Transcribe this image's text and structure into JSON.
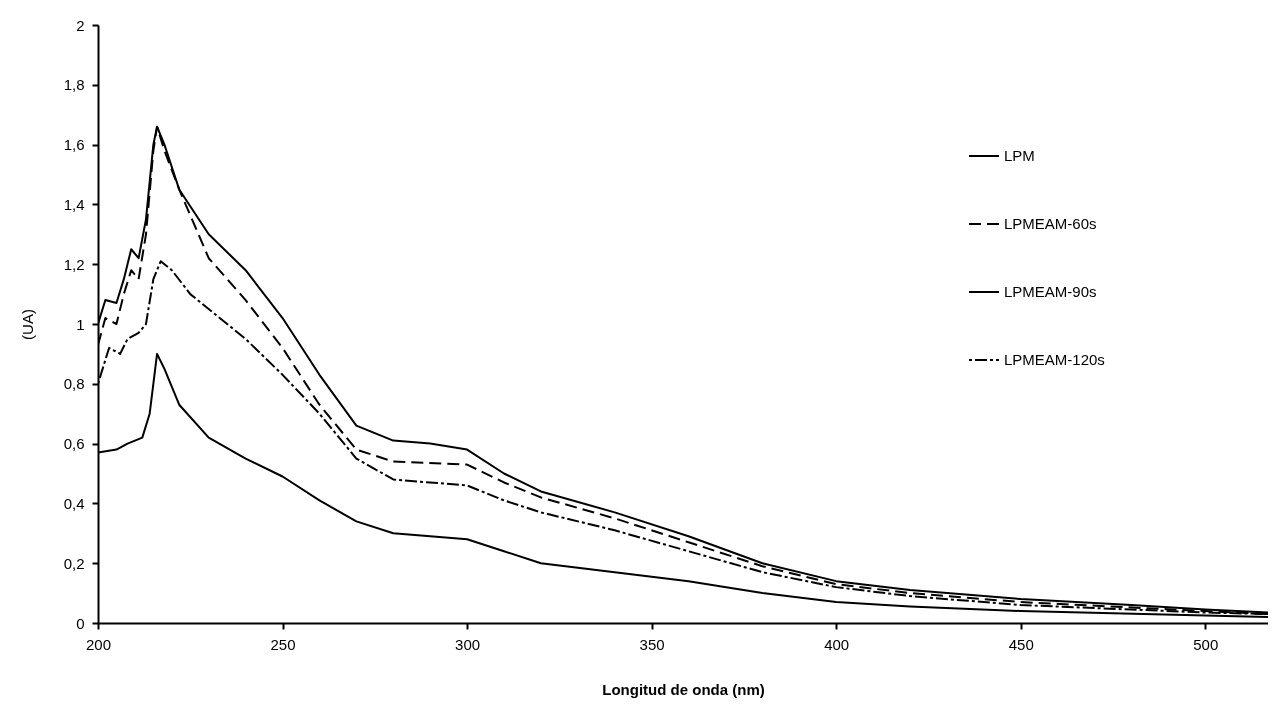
{
  "chart_data": {
    "type": "line",
    "xlabel": "Longitud de onda (nm)",
    "ylabel": "(UA)",
    "xlim": [
      200,
      517
    ],
    "ylim": [
      0,
      2
    ],
    "xticks": [
      200,
      250,
      300,
      350,
      400,
      450,
      500
    ],
    "yticks": [
      0,
      {
        "value": 0.2,
        "label": "0,2"
      },
      {
        "value": 0.4,
        "label": "0,4"
      },
      {
        "value": 0.6,
        "label": "0,6"
      },
      {
        "value": 0.8,
        "label": "0,8"
      },
      1,
      {
        "value": 1.2,
        "label": "1,2"
      },
      {
        "value": 1.4,
        "label": "1,4"
      },
      {
        "value": 1.6,
        "label": "1,6"
      },
      {
        "value": 1.8,
        "label": "1,8"
      },
      2
    ],
    "grid": false,
    "legend": "top right",
    "marker": "none",
    "series": [
      {
        "name": "LPM",
        "color": "#000000",
        "line_style": "solid",
        "x": [
          200,
          202,
          205,
          207,
          209,
          211,
          213,
          215,
          216,
          218,
          222,
          230,
          240,
          250,
          260,
          270,
          280,
          290,
          300,
          310,
          320,
          340,
          360,
          380,
          400,
          420,
          450,
          480,
          500,
          517
        ],
        "values": [
          1.0,
          1.08,
          1.07,
          1.15,
          1.25,
          1.22,
          1.35,
          1.6,
          1.66,
          1.6,
          1.45,
          1.3,
          1.18,
          1.02,
          0.83,
          0.66,
          0.61,
          0.6,
          0.58,
          0.5,
          0.44,
          0.37,
          0.29,
          0.2,
          0.14,
          0.11,
          0.08,
          0.06,
          0.045,
          0.035
        ]
      },
      {
        "name": "LPMEAM-60s",
        "color": "#000000",
        "line_style": "dashed",
        "x": [
          200,
          202,
          205,
          207,
          209,
          211,
          213,
          215,
          216,
          218,
          222,
          230,
          240,
          250,
          260,
          270,
          280,
          300,
          310,
          320,
          340,
          360,
          380,
          400,
          420,
          450,
          500,
          517
        ],
        "values": [
          0.93,
          1.02,
          1.0,
          1.1,
          1.18,
          1.15,
          1.3,
          1.58,
          1.66,
          1.58,
          1.45,
          1.22,
          1.08,
          0.92,
          0.73,
          0.58,
          0.54,
          0.53,
          0.47,
          0.42,
          0.35,
          0.27,
          0.19,
          0.13,
          0.1,
          0.07,
          0.04,
          0.03
        ]
      },
      {
        "name": "LPMEAM-90s",
        "color": "#000000",
        "line_style": "solid",
        "x": [
          200,
          205,
          208,
          212,
          214,
          216,
          218,
          222,
          230,
          240,
          250,
          260,
          270,
          280,
          300,
          310,
          320,
          340,
          360,
          380,
          400,
          420,
          450,
          500,
          517
        ],
        "values": [
          0.57,
          0.58,
          0.6,
          0.62,
          0.7,
          0.9,
          0.85,
          0.73,
          0.62,
          0.55,
          0.49,
          0.41,
          0.34,
          0.3,
          0.28,
          0.24,
          0.2,
          0.17,
          0.14,
          0.1,
          0.07,
          0.055,
          0.04,
          0.025,
          0.02
        ]
      },
      {
        "name": "LPMEAM-120s",
        "color": "#000000",
        "line_style": "dotted",
        "x": [
          200,
          203,
          206,
          208,
          211,
          213,
          215,
          217,
          220,
          225,
          240,
          250,
          260,
          270,
          280,
          300,
          310,
          320,
          340,
          360,
          380,
          400,
          420,
          450,
          500,
          517
        ],
        "values": [
          0.8,
          0.92,
          0.9,
          0.95,
          0.97,
          1.0,
          1.15,
          1.21,
          1.18,
          1.1,
          0.95,
          0.83,
          0.7,
          0.55,
          0.48,
          0.46,
          0.41,
          0.37,
          0.31,
          0.24,
          0.17,
          0.12,
          0.09,
          0.06,
          0.035,
          0.03
        ]
      }
    ]
  }
}
